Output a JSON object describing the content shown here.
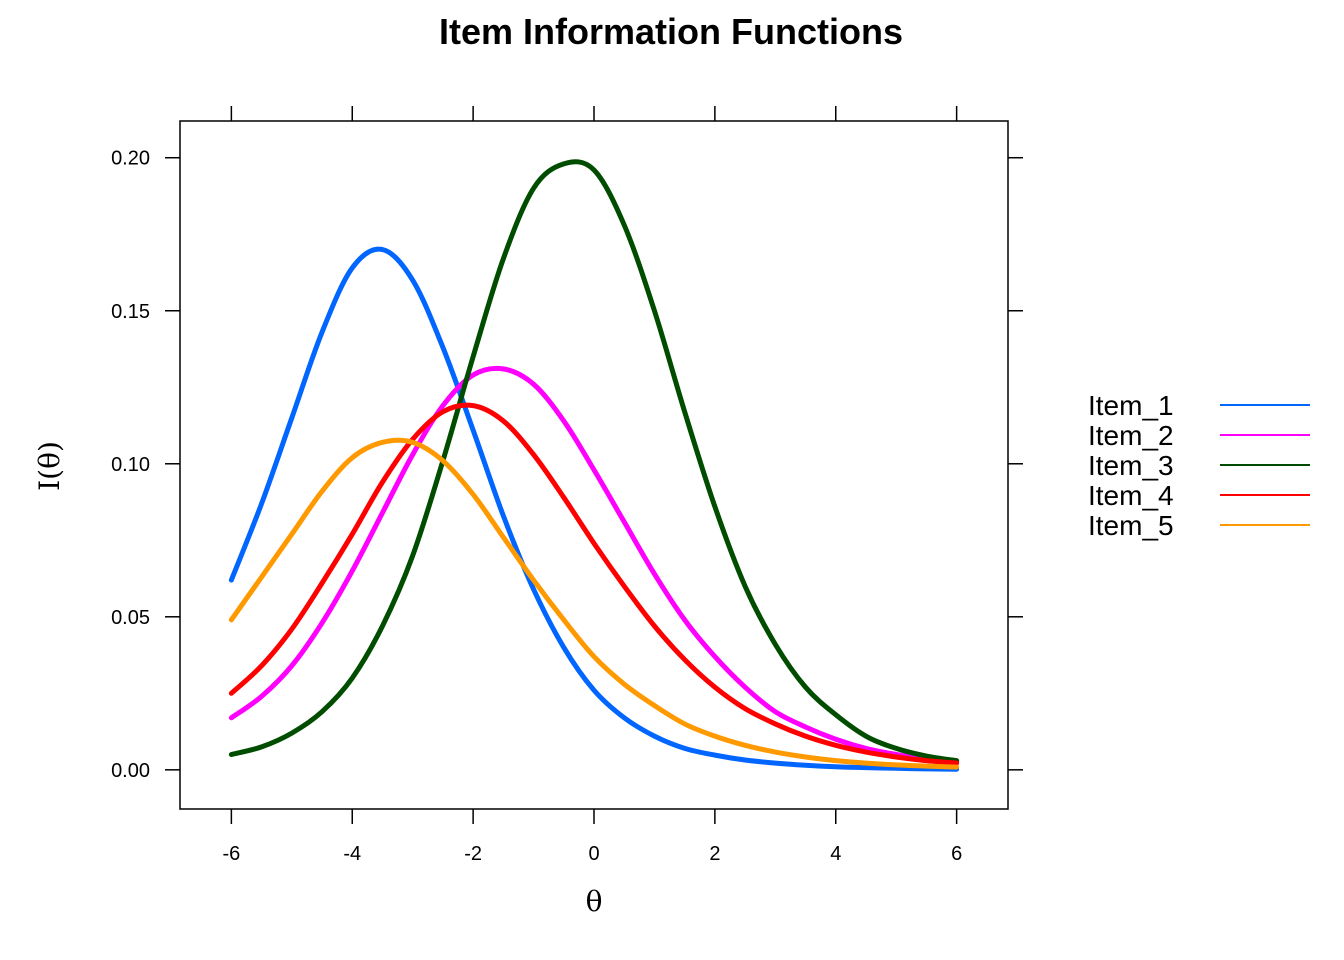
{
  "chart_data": {
    "type": "line",
    "title": "Item Information Functions",
    "xlabel": "θ",
    "ylabel": "I(θ)",
    "xlim": [
      -6.85,
      6.85
    ],
    "ylim": [
      -0.0128,
      0.212
    ],
    "x_ticks": [
      -6,
      -4,
      -2,
      0,
      2,
      4,
      6
    ],
    "x_tick_labels": [
      "-6",
      "-4",
      "-2",
      "0",
      "2",
      "4",
      "6"
    ],
    "y_ticks": [
      0.0,
      0.05,
      0.1,
      0.15,
      0.2
    ],
    "y_tick_labels": [
      "0.00",
      "0.05",
      "0.10",
      "0.15",
      "0.20"
    ],
    "legend_position": "right",
    "grid": false,
    "x": [
      -6,
      -5.5,
      -5,
      -4.5,
      -4,
      -3.5,
      -3,
      -2.5,
      -2,
      -1.5,
      -1,
      -0.5,
      0,
      0.5,
      1,
      1.5,
      2,
      2.5,
      3,
      3.5,
      4,
      4.5,
      5,
      5.5,
      6
    ],
    "series": [
      {
        "name": "Item_1",
        "color": "#0066ff",
        "values": [
          0.062,
          0.087,
          0.115,
          0.143,
          0.164,
          0.17,
          0.16,
          0.138,
          0.111,
          0.083,
          0.059,
          0.04,
          0.026,
          0.017,
          0.011,
          0.007,
          0.0048,
          0.0032,
          0.0022,
          0.0015,
          0.001,
          0.0007,
          0.0005,
          0.0003,
          0.0002
        ]
      },
      {
        "name": "Item_2",
        "color": "#ff00ff",
        "values": [
          0.017,
          0.024,
          0.034,
          0.048,
          0.065,
          0.084,
          0.103,
          0.119,
          0.129,
          0.131,
          0.126,
          0.114,
          0.098,
          0.081,
          0.064,
          0.049,
          0.037,
          0.027,
          0.019,
          0.014,
          0.01,
          0.007,
          0.005,
          0.0035,
          0.0025
        ]
      },
      {
        "name": "Item_3",
        "color": "#004d00",
        "values": [
          0.005,
          0.0075,
          0.012,
          0.019,
          0.03,
          0.047,
          0.07,
          0.101,
          0.135,
          0.167,
          0.19,
          0.198,
          0.196,
          0.178,
          0.15,
          0.117,
          0.086,
          0.06,
          0.041,
          0.027,
          0.018,
          0.011,
          0.007,
          0.0045,
          0.003
        ]
      },
      {
        "name": "Item_4",
        "color": "#ff0000",
        "values": [
          0.025,
          0.034,
          0.046,
          0.061,
          0.077,
          0.094,
          0.108,
          0.117,
          0.119,
          0.114,
          0.103,
          0.089,
          0.074,
          0.06,
          0.047,
          0.036,
          0.027,
          0.02,
          0.015,
          0.011,
          0.008,
          0.0058,
          0.0042,
          0.003,
          0.0022
        ]
      },
      {
        "name": "Item_5",
        "color": "#ff9900",
        "values": [
          0.049,
          0.063,
          0.077,
          0.091,
          0.102,
          0.107,
          0.107,
          0.101,
          0.09,
          0.076,
          0.062,
          0.049,
          0.037,
          0.028,
          0.021,
          0.015,
          0.011,
          0.008,
          0.0058,
          0.0042,
          0.003,
          0.0022,
          0.0016,
          0.0012,
          0.0009
        ]
      }
    ]
  }
}
